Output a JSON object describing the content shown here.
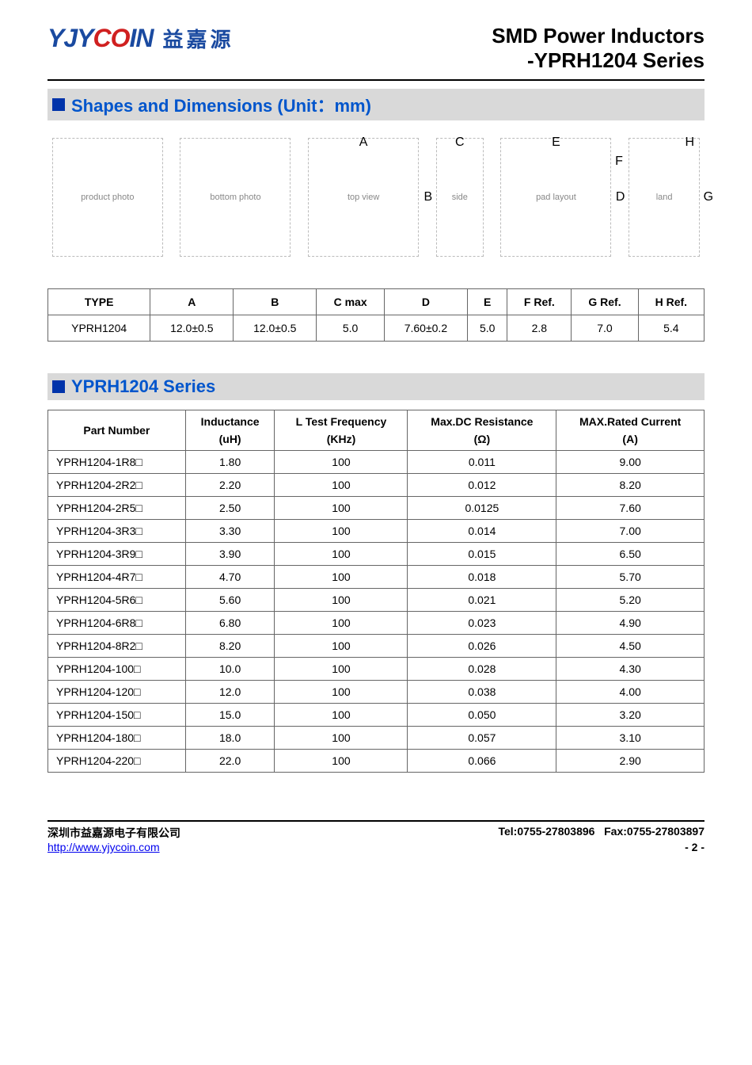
{
  "header": {
    "logo_latin": "YJYCOIN",
    "logo_cn": "益嘉源",
    "title1": "SMD Power Inductors",
    "title2": "-YPRH1204 Series"
  },
  "section1": {
    "title": "Shapes and Dimensions (Unit：mm)",
    "diagram_labels": [
      "A",
      "B",
      "C",
      "D",
      "E",
      "F",
      "G",
      "H"
    ]
  },
  "dim_table": {
    "headers": [
      "TYPE",
      "A",
      "B",
      "C max",
      "D",
      "E",
      "F Ref.",
      "G Ref.",
      "H Ref."
    ],
    "row": [
      "YPRH1204",
      "12.0±0.5",
      "12.0±0.5",
      "5.0",
      "7.60±0.2",
      "5.0",
      "2.8",
      "7.0",
      "5.4"
    ]
  },
  "section2": {
    "title": "YPRH1204 Series"
  },
  "series_table": {
    "headers": {
      "pn": "Part Number",
      "ind": "Inductance",
      "ind_unit": "(uH)",
      "freq": "L Test Frequency",
      "freq_unit": "(KHz)",
      "res": "Max.DC Resistance",
      "res_unit": "(Ω)",
      "cur": "MAX.Rated Current",
      "cur_unit": "(A)"
    },
    "rows": [
      [
        "YPRH1204-1R8□",
        "1.80",
        "100",
        "0.011",
        "9.00"
      ],
      [
        "YPRH1204-2R2□",
        "2.20",
        "100",
        "0.012",
        "8.20"
      ],
      [
        "YPRH1204-2R5□",
        "2.50",
        "100",
        "0.0125",
        "7.60"
      ],
      [
        "YPRH1204-3R3□",
        "3.30",
        "100",
        "0.014",
        "7.00"
      ],
      [
        "YPRH1204-3R9□",
        "3.90",
        "100",
        "0.015",
        "6.50"
      ],
      [
        "YPRH1204-4R7□",
        "4.70",
        "100",
        "0.018",
        "5.70"
      ],
      [
        "YPRH1204-5R6□",
        "5.60",
        "100",
        "0.021",
        "5.20"
      ],
      [
        "YPRH1204-6R8□",
        "6.80",
        "100",
        "0.023",
        "4.90"
      ],
      [
        "YPRH1204-8R2□",
        "8.20",
        "100",
        "0.026",
        "4.50"
      ],
      [
        "YPRH1204-100□",
        "10.0",
        "100",
        "0.028",
        "4.30"
      ],
      [
        "YPRH1204-120□",
        "12.0",
        "100",
        "0.038",
        "4.00"
      ],
      [
        "YPRH1204-150□",
        "15.0",
        "100",
        "0.050",
        "3.20"
      ],
      [
        "YPRH1204-180□",
        "18.0",
        "100",
        "0.057",
        "3.10"
      ],
      [
        "YPRH1204-220□",
        "22.0",
        "100",
        "0.066",
        "2.90"
      ]
    ]
  },
  "footer": {
    "company": "深圳市益嘉源电子有限公司",
    "tel": "Tel:0755-27803896",
    "fax": "Fax:0755-27803897",
    "url": "http://www.yjycoin.com",
    "page": "- 2 -"
  },
  "colors": {
    "section_bg": "#d9d9d9",
    "section_text": "#0055cc",
    "square": "#0033aa",
    "link": "#0000ee",
    "logo_blue": "#1a4aa0",
    "logo_red": "#d02020"
  }
}
